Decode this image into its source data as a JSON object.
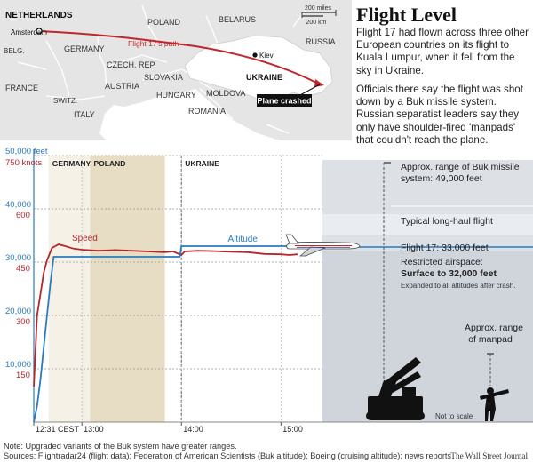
{
  "headline": "Flight Level",
  "paragraphs": [
    "Flight 17 had flown across three other European countries on its flight to Kuala Lumpur, when it fell from the sky in Ukraine.",
    "Officials there say the flight was shot down by a Buk missile system. Russian separatist leaders say they only have shoulder-fired 'manpads' that couldn't reach the plane."
  ],
  "map": {
    "countries": [
      "NETHERLANDS",
      "POLAND",
      "BELARUS",
      "RUSSIA",
      "GERMANY",
      "BELG.",
      "CZECH. REP.",
      "SLOVAKIA",
      "UKRAINE",
      "FRANCE",
      "SWITZ.",
      "AUSTRIA",
      "HUNGARY",
      "MOLDOVA",
      "ROMANIA",
      "ITALY"
    ],
    "cities": [
      "Amsterdam",
      "Kiev"
    ],
    "path_label": "Flight 17's path",
    "crash_label": "Plane crashed",
    "scale": [
      "200 miles",
      "200 km"
    ],
    "colors": {
      "land": "#e5e5e5",
      "ukraine": "#ffffff",
      "path": "#c0272d",
      "crash_box": "#111111"
    }
  },
  "chart_data": {
    "type": "line",
    "x_unit": "time (CEST), 12 July flight day",
    "x_ticks": [
      "12:31 CEST",
      "13:00",
      "14:00",
      "15:00"
    ],
    "y_altitude_label": "50,000 feet",
    "y_altitude_ticks": [
      "10,000",
      "20,000",
      "30,000",
      "40,000"
    ],
    "y_speed_label": "750 knots",
    "y_speed_ticks": [
      "150",
      "300",
      "450",
      "600"
    ],
    "ylim_altitude": [
      0,
      50000
    ],
    "ylim_speed": [
      0,
      750
    ],
    "xlim": [
      "12:31",
      "15:25"
    ],
    "country_bands": [
      {
        "name": "GERMANY",
        "start": "12:40",
        "end": "13:05"
      },
      {
        "name": "POLAND",
        "start": "13:05",
        "end": "13:50"
      },
      {
        "name": "UKRAINE",
        "start": "14:00",
        "end": "15:20"
      }
    ],
    "series": [
      {
        "name": "Speed",
        "axis": "speed",
        "color": "#b5272d",
        "x": [
          "12:31",
          "12:32",
          "12:33",
          "12:35",
          "12:37",
          "12:39",
          "12:42",
          "12:46",
          "12:50",
          "12:55",
          "13:00",
          "13:10",
          "13:20",
          "13:30",
          "13:40",
          "13:50",
          "13:55",
          "14:00",
          "14:02",
          "14:10",
          "14:20",
          "14:30",
          "14:40",
          "14:50",
          "15:00",
          "15:05",
          "15:10"
        ],
        "values": [
          100,
          200,
          300,
          360,
          420,
          455,
          490,
          500,
          495,
          488,
          485,
          482,
          484,
          482,
          480,
          478,
          480,
          470,
          480,
          482,
          481,
          479,
          478,
          473,
          472,
          470,
          472
        ]
      },
      {
        "name": "Altitude",
        "axis": "altitude",
        "color": "#2a7bbf",
        "x": [
          "12:31",
          "12:33",
          "12:35",
          "12:37",
          "12:39",
          "12:41",
          "12:43",
          "12:45",
          "12:50",
          "13:00",
          "13:20",
          "13:40",
          "13:59",
          "14:00",
          "14:30",
          "15:00",
          "15:10"
        ],
        "values": [
          0,
          3000,
          8000,
          14000,
          20000,
          26000,
          31000,
          31000,
          31000,
          31000,
          31000,
          31000,
          31000,
          33000,
          33000,
          33000,
          33000
        ]
      }
    ],
    "annotations": {
      "buk_range": "Approx. range of Buk missile",
      "buk_range_value": "system: 49,000 feet",
      "long_haul": "Typical long-haul flight",
      "flight17": "Flight 17: 33,000 feet",
      "restricted": "Restricted airspace:",
      "restricted_value": "Surface to 32,000 feet",
      "restricted_note": "Expanded to all altitudes after crash.",
      "manpad_1": "Approx. range",
      "manpad_2": "of  manpad",
      "not_to_scale": "Not to scale"
    },
    "reference_levels_ft": {
      "buk": 49000,
      "long_haul_low": 35000,
      "long_haul_high": 39000,
      "flight17": 33000,
      "restricted": 32000,
      "manpad": 15000
    },
    "grid": "dashed horizontal at labeled ticks"
  },
  "footer": {
    "note": "Note: Upgraded variants of the Buk system have greater ranges.",
    "sources": "Sources: Flightradar24 (flight data); Federation of American Scientists (Buk altitude); Boeing (cruising altitude); news reports",
    "credit": "The Wall Street Journal"
  }
}
